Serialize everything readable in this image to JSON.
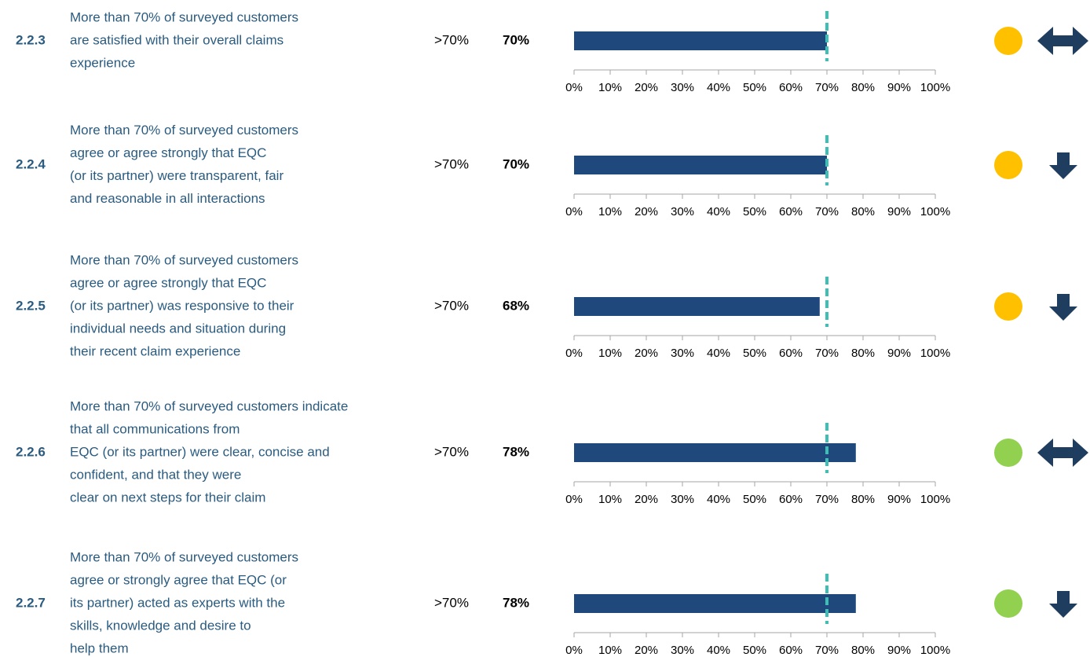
{
  "axis": {
    "xlim": [
      0,
      100
    ],
    "xticks": [
      {
        "value": 0,
        "label": "0%"
      },
      {
        "value": 10,
        "label": "10%"
      },
      {
        "value": 20,
        "label": "20%"
      },
      {
        "value": 30,
        "label": "30%"
      },
      {
        "value": 40,
        "label": "40%"
      },
      {
        "value": 50,
        "label": "50%"
      },
      {
        "value": 60,
        "label": "60%"
      },
      {
        "value": 70,
        "label": "70%"
      },
      {
        "value": 80,
        "label": "80%"
      },
      {
        "value": 90,
        "label": "90%"
      },
      {
        "value": 100,
        "label": "100%"
      }
    ]
  },
  "target_line": 70,
  "bar_color": "#1f497d",
  "target_color": "#3cbfb4",
  "arrow_color": "#1f3d5f",
  "rows": [
    {
      "id": "2.2.3",
      "description": [
        "More than 70% of surveyed customers",
        "are satisfied with their overall claims",
        "experience"
      ],
      "target": ">70%",
      "result": {
        "value": 70,
        "label": "70%"
      },
      "status_color": "#ffc000",
      "trend": "flat"
    },
    {
      "id": "2.2.4",
      "description": [
        "More than 70% of surveyed customers",
        "agree or agree strongly that EQC",
        "(or its partner) were transparent, fair",
        "and reasonable in all interactions"
      ],
      "target": ">70%",
      "result": {
        "value": 70,
        "label": "70%"
      },
      "status_color": "#ffc000",
      "trend": "down"
    },
    {
      "id": "2.2.5",
      "description": [
        "More than 70% of surveyed customers",
        "agree or agree strongly that EQC",
        "(or its partner) was responsive to their",
        "individual needs and situation during",
        "their recent claim experience"
      ],
      "target": ">70%",
      "result": {
        "value": 68,
        "label": "68%"
      },
      "status_color": "#ffc000",
      "trend": "down"
    },
    {
      "id": "2.2.6",
      "description": [
        "More than 70% of surveyed customers indicate",
        "that all communications from",
        "EQC (or its partner) were clear, concise and",
        "confident, and that they were",
        "clear on next steps for their claim"
      ],
      "target": ">70%",
      "result": {
        "value": 78,
        "label": "78%"
      },
      "status_color": "#92d050",
      "trend": "flat"
    },
    {
      "id": "2.2.7",
      "description": [
        "More than 70% of surveyed customers",
        "agree or strongly agree that EQC (or",
        "its partner) acted as experts with the",
        "skills, knowledge and desire to",
        "help them"
      ],
      "target": ">70%",
      "result": {
        "value": 78,
        "label": "78%"
      },
      "status_color": "#92d050",
      "trend": "down"
    }
  ]
}
